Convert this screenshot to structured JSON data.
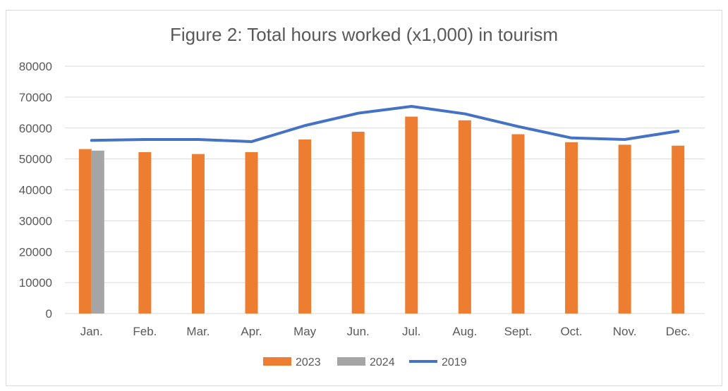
{
  "chart_data": {
    "type": "bar",
    "title": "Figure 2: Total hours worked (x1,000) in tourism",
    "xlabel": "",
    "ylabel": "",
    "ylim": [
      0,
      80000
    ],
    "yticks": [
      "0",
      "10000",
      "20000",
      "30000",
      "40000",
      "50000",
      "60000",
      "70000",
      "80000"
    ],
    "categories": [
      "Jan.",
      "Feb.",
      "Mar.",
      "Apr.",
      "May",
      "Jun.",
      "Jul.",
      "Aug.",
      "Sept.",
      "Oct.",
      "Nov.",
      "Dec."
    ],
    "grid": "horizontal",
    "legend_position": "bottom",
    "series": [
      {
        "name": "2023",
        "type": "bar",
        "color": "#ed7d31",
        "values": [
          53200,
          52200,
          51600,
          52200,
          56300,
          58800,
          63700,
          62500,
          58000,
          55400,
          54600,
          54300
        ]
      },
      {
        "name": "2024",
        "type": "bar",
        "color": "#a5a5a5",
        "values": [
          52700,
          null,
          null,
          null,
          null,
          null,
          null,
          null,
          null,
          null,
          null,
          null
        ]
      },
      {
        "name": "2019",
        "type": "line",
        "color": "#4472c4",
        "values": [
          56000,
          56300,
          56300,
          55600,
          60800,
          64800,
          67000,
          64600,
          60500,
          56800,
          56300,
          59000
        ]
      }
    ]
  }
}
